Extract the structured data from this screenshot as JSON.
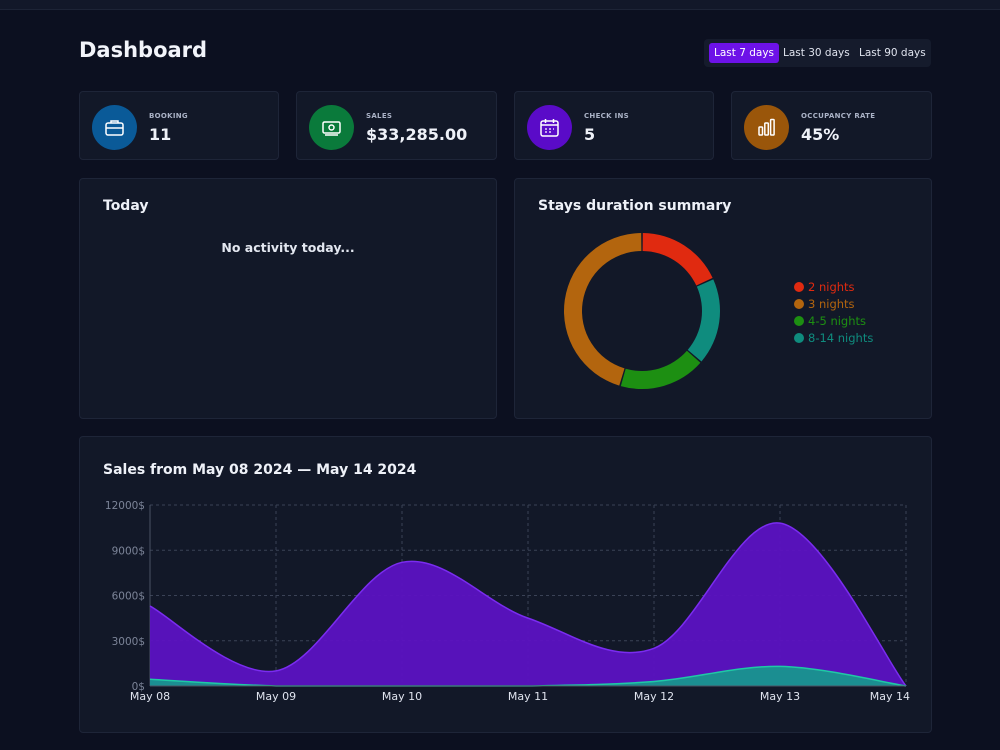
{
  "header": {
    "title": "Dashboard"
  },
  "range_buttons": [
    {
      "label": "Last 7 days",
      "active": true
    },
    {
      "label": "Last 30 days",
      "active": false
    },
    {
      "label": "Last 90 days",
      "active": false
    }
  ],
  "stats": [
    {
      "label": "BOOKING",
      "value": "11",
      "icon": "briefcase-icon",
      "color": "#0a5a98"
    },
    {
      "label": "SALES",
      "value": "$33,285.00",
      "icon": "money-icon",
      "color": "#0a7a3b"
    },
    {
      "label": "CHECK INS",
      "value": "5",
      "icon": "calendar-icon",
      "color": "#5a0bc8"
    },
    {
      "label": "OCCUPANCY RATE",
      "value": "45%",
      "icon": "bar-chart-icon",
      "color": "#9a560a"
    }
  ],
  "today": {
    "title": "Today",
    "empty_text": "No activity today..."
  },
  "stays": {
    "title": "Stays duration summary",
    "legend": [
      {
        "label": "2 nights",
        "color": "#e02a10"
      },
      {
        "label": "3 nights",
        "color": "#b3650e"
      },
      {
        "label": "4-5 nights",
        "color": "#1d8f12"
      },
      {
        "label": "8-14 nights",
        "color": "#0f8c7e"
      }
    ]
  },
  "sales_chart": {
    "title": "Sales from May 08 2024 — May 14 2024"
  },
  "chart_data": [
    {
      "type": "pie",
      "title": "Stays duration summary",
      "donut": true,
      "categories": [
        "2 nights",
        "8-14 nights",
        "4-5 nights",
        "3 nights"
      ],
      "values": [
        2,
        2,
        2,
        5
      ],
      "colors": [
        "#e02a10",
        "#0f8c7e",
        "#1d8f12",
        "#b3650e"
      ],
      "legend_position": "right"
    },
    {
      "type": "area",
      "title": "Sales from May 08 2024 — May 14 2024",
      "categories": [
        "May 08",
        "May 09",
        "May 10",
        "May 11",
        "May 12",
        "May 13",
        "May 14"
      ],
      "series": [
        {
          "values": [
            5300,
            1000,
            8200,
            4500,
            2500,
            10800,
            0
          ],
          "color": "#5c12c2"
        },
        {
          "values": [
            450,
            0,
            0,
            0,
            300,
            1300,
            0
          ],
          "color": "#10a58a"
        }
      ],
      "y_ticks": [
        "0$",
        "3000$",
        "6000$",
        "9000$",
        "12000$"
      ],
      "y_tick_values": [
        0,
        3000,
        6000,
        9000,
        12000
      ],
      "ylim": [
        0,
        12000
      ],
      "grid": true
    }
  ]
}
